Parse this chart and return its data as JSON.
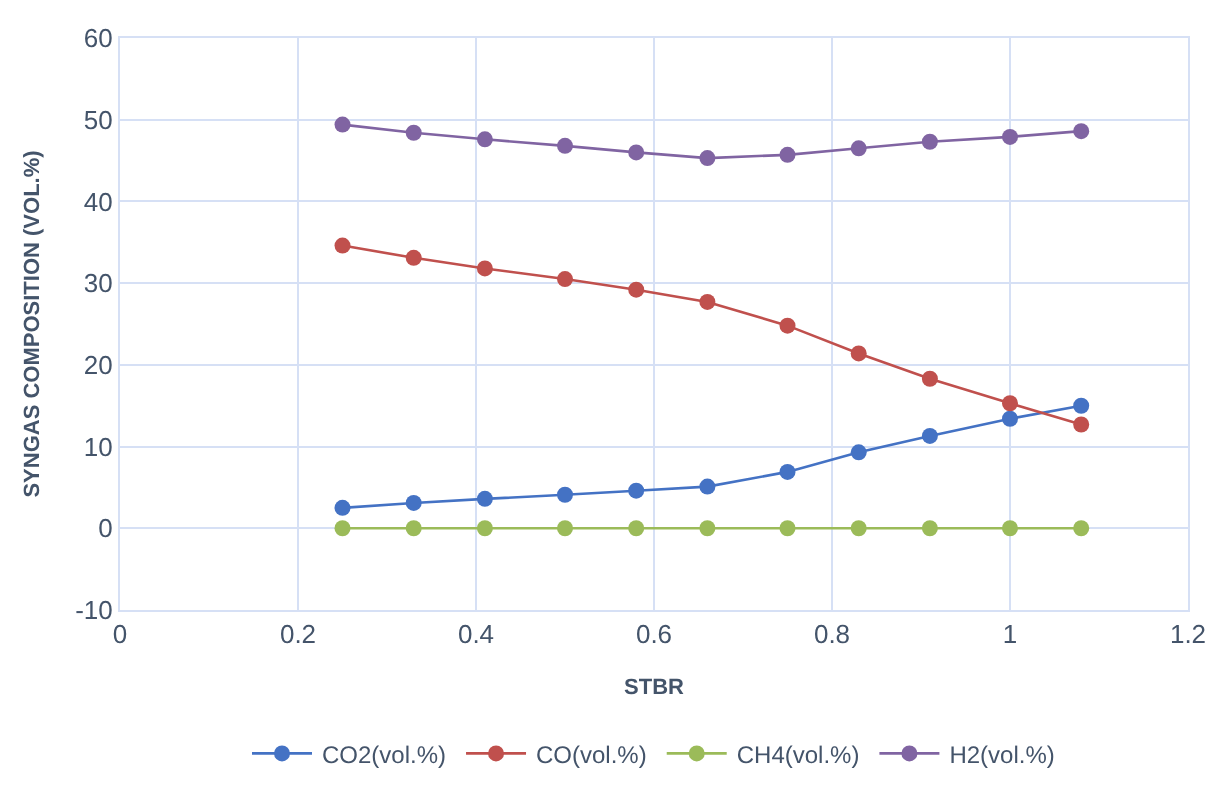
{
  "chart_data": {
    "type": "line",
    "xlabel": "STBR",
    "ylabel": "SYNGAS COMPOSITION (VOL.%)",
    "x": [
      0.25,
      0.33,
      0.41,
      0.5,
      0.58,
      0.66,
      0.75,
      0.83,
      0.91,
      1.0,
      1.08
    ],
    "series": [
      {
        "name": "CO2(vol.%)",
        "color": "#4472c4",
        "values": [
          2.5,
          3.1,
          3.6,
          4.1,
          4.6,
          5.1,
          6.9,
          9.3,
          11.3,
          13.4,
          15.0
        ]
      },
      {
        "name": "CO(vol.%)",
        "color": "#c0504d",
        "values": [
          34.6,
          33.1,
          31.8,
          30.5,
          29.2,
          27.7,
          24.8,
          21.4,
          18.3,
          15.3,
          12.7
        ]
      },
      {
        "name": "CH4(vol.%)",
        "color": "#9bbb59",
        "values": [
          0,
          0,
          0,
          0,
          0,
          0,
          0,
          0,
          0,
          0,
          0
        ]
      },
      {
        "name": "H2(vol.%)",
        "color": "#8064a2",
        "values": [
          49.4,
          48.4,
          47.6,
          46.8,
          46.0,
          45.3,
          45.7,
          46.5,
          47.3,
          47.9,
          48.6
        ]
      }
    ],
    "xlim": [
      0,
      1.2
    ],
    "xticks": [
      0,
      0.2,
      0.4,
      0.6,
      0.8,
      1,
      1.2
    ],
    "ylim": [
      -10,
      60
    ],
    "yticks": [
      -10,
      0,
      10,
      20,
      30,
      40,
      50,
      60
    ],
    "grid": true,
    "legend": "bottom",
    "marker": "circle",
    "line_style": "solid"
  }
}
